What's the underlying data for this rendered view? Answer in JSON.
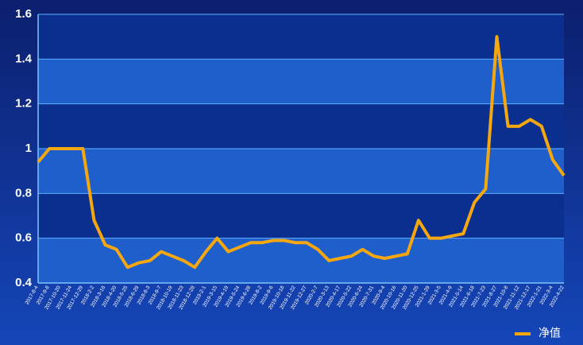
{
  "chart_data": {
    "type": "line",
    "categories": [
      "2017-8-4",
      "2017-9-8",
      "2017-10-20",
      "2017-11-24",
      "2017-12-29",
      "2018-2-2",
      "2018-3-16",
      "2018-4-20",
      "2018-5-25",
      "2018-6-29",
      "2018-8-3",
      "2018-9-7",
      "2018-10-19",
      "2018-11-23",
      "2018-12-28",
      "2019-2-1",
      "2019-3-15",
      "2019-4-19",
      "2019-5-24",
      "2019-6-28",
      "2019-8-2",
      "2019-9-6",
      "2019-10-18",
      "2019-11-22",
      "2019-12-27",
      "2020-2-7",
      "2020-3-13",
      "2020-4-17",
      "2020-5-22",
      "2020-6-24",
      "2020-7-31",
      "2020-9-4",
      "2020-10-16",
      "2020-11-20",
      "2020-12-25",
      "2021-1-29",
      "2021-3-5",
      "2021-4-9",
      "2021-5-14",
      "2021-6-18",
      "2021-7-23",
      "2021-8-27",
      "2021-10-8",
      "2021-11-12",
      "2021-12-17",
      "2022-1-21",
      "2022-3-4",
      "2022-4-22"
    ],
    "series": [
      {
        "name": "净值",
        "color": "#f5a70f",
        "values": [
          0.94,
          1.0,
          1.0,
          1.0,
          1.0,
          0.68,
          0.57,
          0.55,
          0.47,
          0.49,
          0.5,
          0.54,
          0.52,
          0.5,
          0.47,
          0.54,
          0.6,
          0.54,
          0.56,
          0.58,
          0.58,
          0.59,
          0.59,
          0.58,
          0.58,
          0.55,
          0.5,
          0.51,
          0.52,
          0.55,
          0.52,
          0.51,
          0.52,
          0.53,
          0.68,
          0.6,
          0.6,
          0.61,
          0.62,
          0.76,
          0.82,
          1.5,
          1.1,
          1.1,
          1.13,
          1.1,
          0.95,
          0.88
        ]
      }
    ],
    "ylim": [
      0.4,
      1.6
    ],
    "yticks": [
      0.4,
      0.6,
      0.8,
      1,
      1.2,
      1.4,
      1.6
    ],
    "grid": true,
    "legend": "bottom-right"
  }
}
